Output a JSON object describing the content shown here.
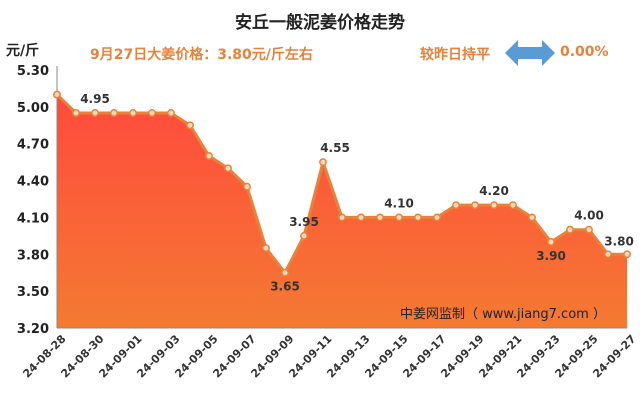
{
  "title": "安丘一般泥姜价格走势",
  "unit_label": "元/斤",
  "price_note": "9月27日大姜价格：3.80元/斤左右",
  "change_label": "较昨日持平",
  "change_value": "0.00%",
  "watermark": "中姜网监制（ www.jiang7.com ）",
  "colors": {
    "line": "#e8823a",
    "fill_top": "#ff4a3d",
    "fill_bottom": "#f47a32",
    "accent_text": "#e8823a",
    "arrow": "#5b9bd5"
  },
  "icon": "double-arrow-icon",
  "chart_data": {
    "type": "area",
    "title": "安丘一般泥姜价格走势",
    "ylabel": "元/斤",
    "xlabel": "",
    "ylim": [
      3.2,
      5.3
    ],
    "yticks": [
      "5.30",
      "5.00",
      "4.70",
      "4.40",
      "4.10",
      "3.80",
      "3.50",
      "3.20"
    ],
    "grid": false,
    "x": [
      "24-08-28",
      "24-08-29",
      "24-08-30",
      "24-08-31",
      "24-09-01",
      "24-09-02",
      "24-09-03",
      "24-09-04",
      "24-09-05",
      "24-09-06",
      "24-09-07",
      "24-09-08",
      "24-09-09",
      "24-09-10",
      "24-09-11",
      "24-09-12",
      "24-09-13",
      "24-09-14",
      "24-09-15",
      "24-09-16",
      "24-09-17",
      "24-09-18",
      "24-09-19",
      "24-09-20",
      "24-09-21",
      "24-09-22",
      "24-09-23",
      "24-09-24",
      "24-09-25",
      "24-09-26",
      "24-09-27"
    ],
    "xtick_labels": [
      "24-08-28",
      "24-08-30",
      "24-09-01",
      "24-09-03",
      "24-09-05",
      "24-09-07",
      "24-09-09",
      "24-09-11",
      "24-09-13",
      "24-09-15",
      "24-09-17",
      "24-09-19",
      "24-09-21",
      "24-09-23",
      "24-09-25",
      "24-09-27"
    ],
    "values": [
      5.1,
      4.95,
      4.95,
      4.95,
      4.95,
      4.95,
      4.95,
      4.85,
      4.6,
      4.5,
      4.35,
      3.85,
      3.65,
      3.95,
      4.55,
      4.1,
      4.1,
      4.1,
      4.1,
      4.1,
      4.1,
      4.2,
      4.2,
      4.2,
      4.2,
      4.1,
      3.9,
      4.0,
      4.0,
      3.8,
      3.8
    ],
    "data_labels": [
      {
        "index": 2,
        "text": "4.95"
      },
      {
        "index": 12,
        "text": "3.65"
      },
      {
        "index": 13,
        "text": "3.95"
      },
      {
        "index": 14,
        "text": "4.55"
      },
      {
        "index": 18,
        "text": "4.10"
      },
      {
        "index": 23,
        "text": "4.20"
      },
      {
        "index": 26,
        "text": "3.90"
      },
      {
        "index": 28,
        "text": "4.00"
      },
      {
        "index": 30,
        "text": "3.80"
      }
    ]
  }
}
